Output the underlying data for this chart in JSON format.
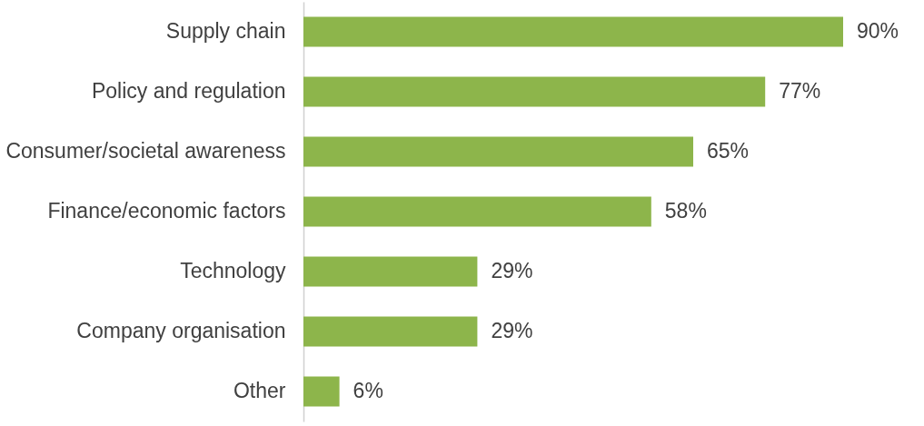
{
  "chart_data": {
    "type": "bar",
    "orientation": "horizontal",
    "categories": [
      "Supply chain",
      "Policy and regulation",
      "Consumer/societal awareness",
      "Finance/economic factors",
      "Technology",
      "Company organisation",
      "Other"
    ],
    "values": [
      90,
      77,
      65,
      58,
      29,
      29,
      6
    ],
    "color": "#8db54b",
    "value_labels": [
      "90%",
      "77%",
      "65%",
      "58%",
      "29%",
      "29%",
      "6%"
    ],
    "xlim": [
      0,
      100
    ],
    "tick_labels": "y"
  }
}
